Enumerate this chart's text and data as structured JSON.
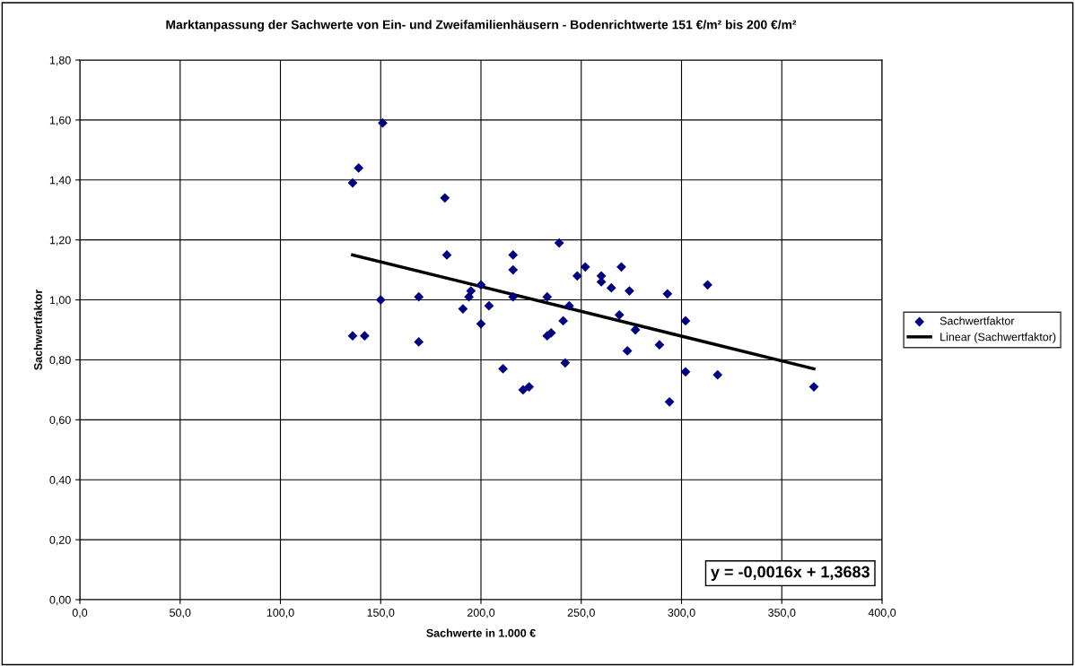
{
  "chart_data": {
    "type": "scatter",
    "title": "Marktanpassung der Sachwerte von Ein- und Zweifamilienhäusern - Bodenrichtwerte 151 €/m² bis 200 €/m²",
    "xlabel": "Sachwerte in 1.000 €",
    "ylabel": "Sachwertfaktor",
    "xlim": [
      0,
      400
    ],
    "xticks": [
      {
        "value": 0,
        "label": "0,0"
      },
      {
        "value": 50,
        "label": "50,0"
      },
      {
        "value": 100,
        "label": "100,0"
      },
      {
        "value": 150,
        "label": "150,0"
      },
      {
        "value": 200,
        "label": "200,0"
      },
      {
        "value": 250,
        "label": "250,0"
      },
      {
        "value": 300,
        "label": "300,0"
      },
      {
        "value": 350,
        "label": "350,0"
      },
      {
        "value": 400,
        "label": "400,0"
      }
    ],
    "ylim": [
      0,
      1.8
    ],
    "yticks": [
      {
        "value": 0,
        "label": "0,00"
      },
      {
        "value": 0.2,
        "label": "0,20"
      },
      {
        "value": 0.4,
        "label": "0,40"
      },
      {
        "value": 0.6,
        "label": "0,60"
      },
      {
        "value": 0.8,
        "label": "0,80"
      },
      {
        "value": 1.0,
        "label": "1,00"
      },
      {
        "value": 1.2,
        "label": "1,20"
      },
      {
        "value": 1.4,
        "label": "1,40"
      },
      {
        "value": 1.6,
        "label": "1,60"
      },
      {
        "value": 1.8,
        "label": "1,80"
      }
    ],
    "grid": true,
    "legend": "right",
    "marker": "diamond",
    "series": [
      {
        "name": "Sachwertfaktor",
        "color": "#000080",
        "x": [
          136,
          139,
          151,
          136,
          142,
          150,
          169,
          169,
          182,
          183,
          191,
          194,
          195,
          200,
          200,
          204,
          211,
          216,
          216,
          216,
          221,
          224,
          233,
          233,
          235,
          239,
          241,
          242,
          244,
          248,
          252,
          260,
          260,
          265,
          269,
          270,
          273,
          274,
          277,
          289,
          293,
          294,
          302,
          302,
          313,
          318,
          366
        ],
        "values": [
          1.39,
          1.44,
          1.59,
          0.88,
          0.88,
          1.0,
          1.01,
          0.86,
          1.34,
          1.15,
          0.97,
          1.01,
          1.03,
          1.05,
          0.92,
          0.98,
          0.77,
          1.15,
          1.1,
          1.01,
          0.7,
          0.71,
          1.01,
          0.88,
          0.89,
          1.19,
          0.93,
          0.79,
          0.98,
          1.08,
          1.11,
          1.08,
          1.06,
          1.04,
          0.95,
          1.11,
          0.83,
          1.03,
          0.9,
          0.85,
          1.02,
          0.66,
          0.93,
          0.76,
          1.05,
          0.75,
          0.71
        ]
      },
      {
        "name": "Linear (Sachwertfaktor)",
        "type": "line",
        "color": "#000000",
        "marker": "none",
        "x": [
          136,
          366
        ],
        "values": [
          1.15,
          0.77
        ]
      }
    ],
    "annotations": [
      "y = -0,0016x + 1,3683"
    ]
  }
}
